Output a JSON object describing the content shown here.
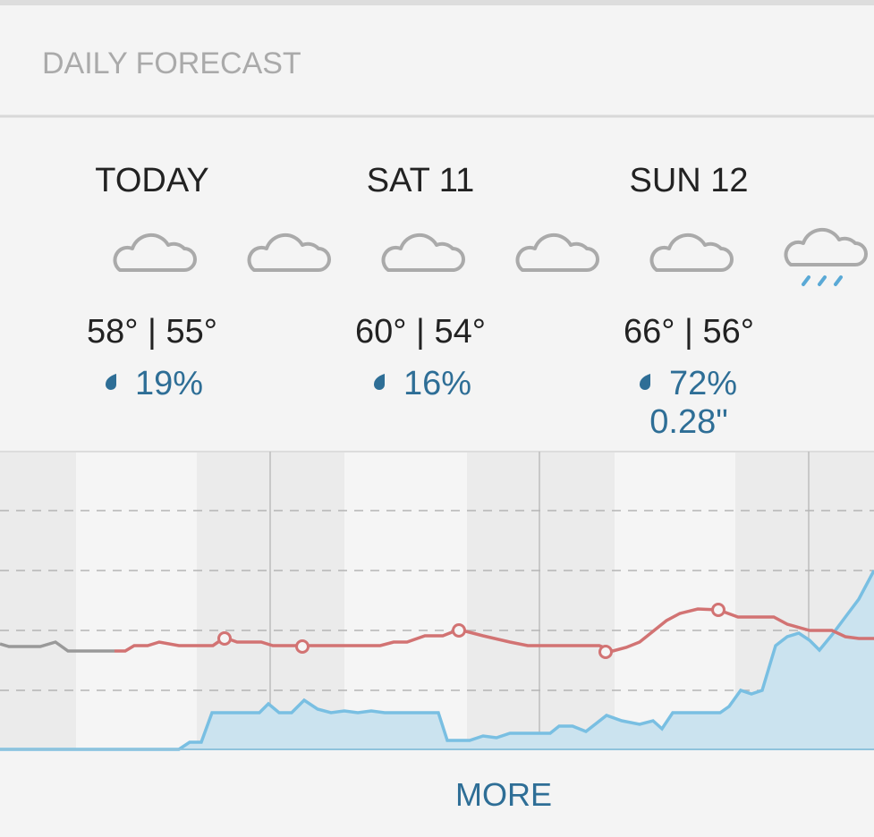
{
  "header": {
    "title": "DAILY FORECAST"
  },
  "days": [
    {
      "label": "TODAY",
      "temps": "58° | 55°",
      "precip": "19%"
    },
    {
      "label": "SAT 11",
      "temps": "60° | 54°",
      "precip": "16%"
    },
    {
      "label": "SUN 12",
      "temps": "66° | 56°",
      "precip": "72%",
      "amount": "0.28\""
    }
  ],
  "more": "MORE"
}
